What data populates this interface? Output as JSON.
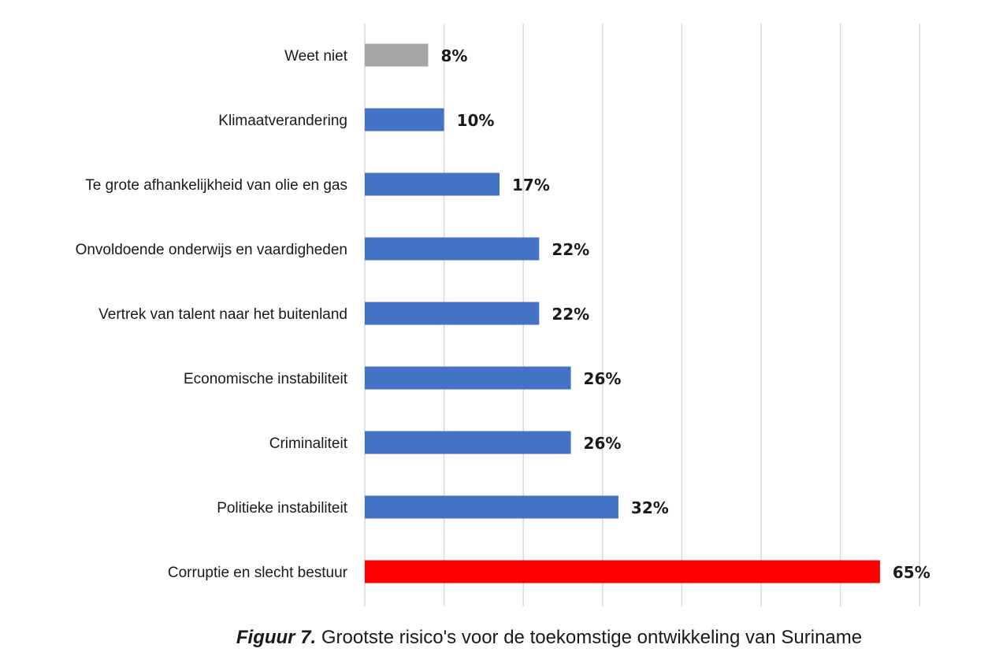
{
  "chart_data": {
    "type": "bar",
    "orientation": "horizontal",
    "categories": [
      "Weet niet",
      "Klimaatverandering",
      "Te grote afhankelijkheid van olie en gas",
      "Onvoldoende onderwijs en vaardigheden",
      "Vertrek van talent naar het buitenland",
      "Economische instabiliteit",
      "Criminaliteit",
      "Politieke instabiliteit",
      "Corruptie en slecht bestuur"
    ],
    "values": [
      8,
      10,
      17,
      22,
      22,
      26,
      26,
      32,
      65
    ],
    "value_labels": [
      "8%",
      "10%",
      "17%",
      "22%",
      "22%",
      "26%",
      "26%",
      "32%",
      "65%"
    ],
    "bar_colors": [
      "#a6a6a6",
      "#4472c4",
      "#4472c4",
      "#4472c4",
      "#4472c4",
      "#4472c4",
      "#4472c4",
      "#4472c4",
      "#ff0000"
    ],
    "xlim": [
      0,
      70
    ],
    "grid": true,
    "gridline_color": "#d9d9d9"
  },
  "caption": {
    "prefix": "Figuur 7.",
    "text": " Grootste risico's voor de toekomstige ontwikkeling van Suriname"
  }
}
